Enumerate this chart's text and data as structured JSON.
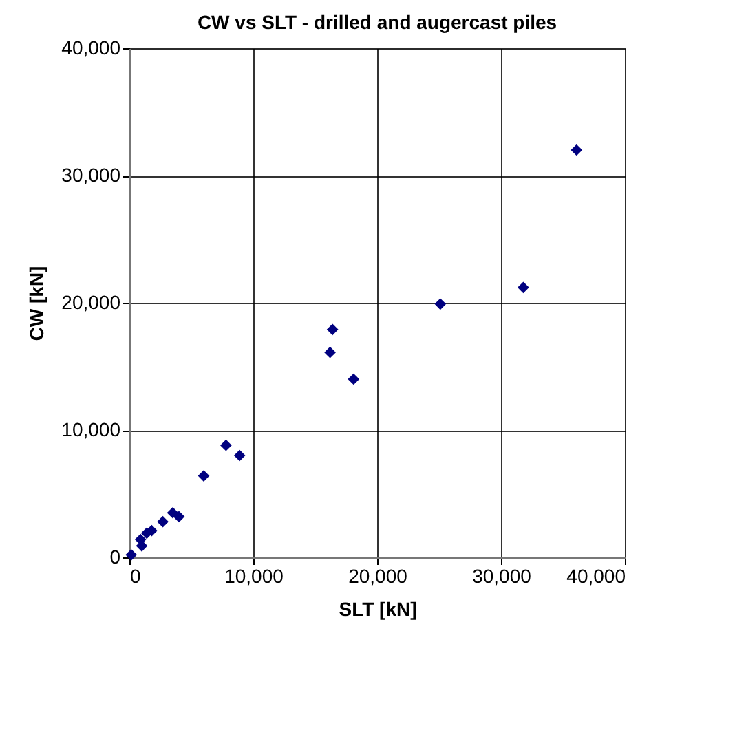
{
  "chart_data": {
    "type": "scatter",
    "title": "CW vs SLT - drilled and augercast piles",
    "xlabel": "SLT [kN]",
    "ylabel": "CW [kN]",
    "x": [
      150,
      1000,
      900,
      1400,
      1800,
      2700,
      3500,
      4000,
      6000,
      7800,
      8900,
      16400,
      16200,
      18100,
      25100,
      31800,
      36100
    ],
    "series": [
      {
        "color": "#000080",
        "values": [
          200,
          900,
          1400,
          1900,
          2100,
          2800,
          3500,
          3200,
          6400,
          8800,
          8000,
          17900,
          16100,
          14000,
          19900,
          21200,
          32000
        ]
      }
    ],
    "xlim": [
      0,
      40000
    ],
    "ylim": [
      0,
      40000
    ],
    "xticks": [
      {
        "value": 0,
        "label": "0"
      },
      {
        "value": 10000,
        "label": "10,000"
      },
      {
        "value": 20000,
        "label": "20,000"
      },
      {
        "value": 30000,
        "label": "30,000"
      },
      {
        "value": 40000,
        "label": "40,000"
      }
    ],
    "yticks": [
      {
        "value": 0,
        "label": "0"
      },
      {
        "value": 10000,
        "label": "10,000"
      },
      {
        "value": 20000,
        "label": "20,000"
      },
      {
        "value": 30000,
        "label": "30,000"
      },
      {
        "value": 40000,
        "label": "40,000"
      }
    ],
    "grid": true,
    "marker": "diamond",
    "legend": false
  }
}
